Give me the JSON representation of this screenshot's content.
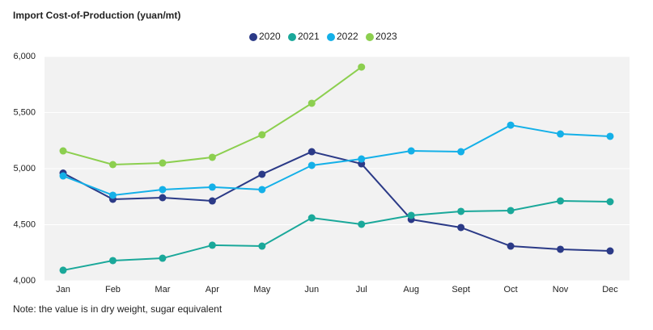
{
  "chart_data": {
    "type": "line",
    "title": "Import Cost-of-Production (yuan/mt)",
    "note": "Note: the value is in dry weight, sugar equivalent",
    "categories": [
      "Jan",
      "Feb",
      "Mar",
      "Apr",
      "May",
      "Jun",
      "Jul",
      "Aug",
      "Sept",
      "Oct",
      "Nov",
      "Dec"
    ],
    "series": [
      {
        "name": "2020",
        "color": "#2b3a87",
        "values": [
          4960,
          4727,
          4741,
          4712,
          4950,
          5151,
          5043,
          4547,
          4475,
          4309,
          4281,
          4266
        ]
      },
      {
        "name": "2021",
        "color": "#1aa89a",
        "values": [
          4094,
          4180,
          4201,
          4317,
          4309,
          4561,
          4504,
          4583,
          4619,
          4626,
          4712,
          4705
        ]
      },
      {
        "name": "2022",
        "color": "#14b0e8",
        "values": [
          4935,
          4763,
          4813,
          4835,
          4813,
          5029,
          5086,
          5158,
          5151,
          5388,
          5309,
          5288
        ]
      },
      {
        "name": "2023",
        "color": "#8ccf4f",
        "values": [
          5158,
          5036,
          5050,
          5101,
          5302,
          5583,
          5906,
          null,
          null,
          null,
          null,
          null
        ]
      }
    ],
    "ylim": [
      4000,
      6000
    ],
    "yticks": [
      {
        "value": 4000,
        "label": "4,000"
      },
      {
        "value": 4500,
        "label": "4,500"
      },
      {
        "value": 5000,
        "label": "5,000"
      },
      {
        "value": 5500,
        "label": "5,500"
      },
      {
        "value": 6000,
        "label": "6,000"
      }
    ],
    "grid": true,
    "legend": "top"
  }
}
